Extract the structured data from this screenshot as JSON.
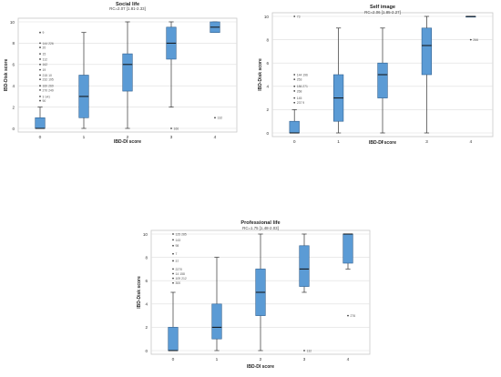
{
  "chart_data": [
    {
      "type": "box",
      "title": "Social life",
      "subtitle": "RC=2.07 [1.81-2.33]",
      "xlabel": "IBD-DI score",
      "ylabel": "IBD-Disk score",
      "categories": [
        "0",
        "1",
        "2",
        "3",
        "4"
      ],
      "yticks": [
        "0",
        "2",
        "4",
        "6",
        "8",
        "10"
      ],
      "ylim": [
        0,
        10
      ],
      "boxes": [
        {
          "category": "0",
          "min": 0,
          "q1": 0,
          "median": 0,
          "q3": 1,
          "max": 2
        },
        {
          "category": "1",
          "min": 0,
          "q1": 1,
          "median": 3,
          "q3": 5,
          "max": 9
        },
        {
          "category": "2",
          "min": 0,
          "q1": 3.5,
          "median": 6,
          "q3": 7,
          "max": 10
        },
        {
          "category": "3",
          "min": 2,
          "q1": 6.5,
          "median": 8,
          "q3": 9.5,
          "max": 10
        },
        {
          "category": "4",
          "min": 9,
          "q1": 9,
          "median": 9.5,
          "q3": 10,
          "max": 10
        }
      ],
      "outliers": [
        {
          "category": "0",
          "y": 9,
          "label": "9"
        },
        {
          "category": "0",
          "y": 8,
          "label": "144 226"
        },
        {
          "category": "0",
          "y": 7.6,
          "label": "20"
        },
        {
          "category": "0",
          "y": 7,
          "label": "15"
        },
        {
          "category": "0",
          "y": 6.5,
          "label": "112"
        },
        {
          "category": "0",
          "y": 6,
          "label": "162"
        },
        {
          "category": "0",
          "y": 5.5,
          "label": "19"
        },
        {
          "category": "0",
          "y": 5,
          "label": "215 10"
        },
        {
          "category": "0",
          "y": 4.6,
          "label": "232 195"
        },
        {
          "category": "0",
          "y": 4,
          "label": "160 269"
        },
        {
          "category": "0",
          "y": 3.6,
          "label": "270 249"
        },
        {
          "category": "0",
          "y": 3,
          "label": "3 141"
        },
        {
          "category": "0",
          "y": 2.6,
          "label": "90"
        },
        {
          "category": "3",
          "y": 0,
          "label": "166"
        },
        {
          "category": "4",
          "y": 1,
          "label": "132"
        }
      ]
    },
    {
      "type": "box",
      "title": "Self image",
      "subtitle": "RC=2.06 [1.85-2.27]",
      "xlabel": "IBD-DI score",
      "ylabel": "IBD-Disk score",
      "categories": [
        "0",
        "1",
        "2",
        "3",
        "4"
      ],
      "yticks": [
        "0",
        "2",
        "4",
        "6",
        "8",
        "10"
      ],
      "ylim": [
        0,
        10
      ],
      "boxes": [
        {
          "category": "0",
          "min": 0,
          "q1": 0,
          "median": 0,
          "q3": 1,
          "max": 2
        },
        {
          "category": "1",
          "min": 0,
          "q1": 1,
          "median": 3,
          "q3": 5,
          "max": 9
        },
        {
          "category": "2",
          "min": 0,
          "q1": 3,
          "median": 5,
          "q3": 6,
          "max": 9
        },
        {
          "category": "3",
          "min": 0,
          "q1": 5,
          "median": 7.5,
          "q3": 9,
          "max": 10
        },
        {
          "category": "4",
          "min": 10,
          "q1": 10,
          "median": 10,
          "q3": 10,
          "max": 10
        }
      ],
      "outliers": [
        {
          "category": "0",
          "y": 10,
          "label": "73"
        },
        {
          "category": "0",
          "y": 5,
          "label": "144 196"
        },
        {
          "category": "0",
          "y": 4.6,
          "label": "253"
        },
        {
          "category": "0",
          "y": 4,
          "label": "186 271"
        },
        {
          "category": "0",
          "y": 3.6,
          "label": "268"
        },
        {
          "category": "0",
          "y": 3,
          "label": "145"
        },
        {
          "category": "0",
          "y": 2.6,
          "label": "237 9"
        },
        {
          "category": "4",
          "y": 8,
          "label": "266"
        }
      ]
    },
    {
      "type": "box",
      "title": "Professional life",
      "subtitle": "RC=1.75 [1.48-2.03]",
      "xlabel": "IBD-DI score",
      "ylabel": "IBD-Disk score",
      "categories": [
        "0",
        "1",
        "2",
        "3",
        "4"
      ],
      "yticks": [
        "0",
        "2",
        "4",
        "6",
        "8",
        "10"
      ],
      "ylim": [
        0,
        10
      ],
      "boxes": [
        {
          "category": "0",
          "min": 0,
          "q1": 0,
          "median": 0,
          "q3": 2,
          "max": 5
        },
        {
          "category": "1",
          "min": 0,
          "q1": 1,
          "median": 2,
          "q3": 4,
          "max": 8
        },
        {
          "category": "2",
          "min": 0,
          "q1": 3,
          "median": 5,
          "q3": 7,
          "max": 10
        },
        {
          "category": "3",
          "min": 5,
          "q1": 5.5,
          "median": 7,
          "q3": 9,
          "max": 10
        },
        {
          "category": "4",
          "min": 7,
          "q1": 7.5,
          "median": 10,
          "q3": 10,
          "max": 10
        }
      ],
      "outliers": [
        {
          "category": "0",
          "y": 10,
          "label": "125 285"
        },
        {
          "category": "0",
          "y": 9.5,
          "label": "143"
        },
        {
          "category": "0",
          "y": 9,
          "label": "98"
        },
        {
          "category": "0",
          "y": 8.3,
          "label": "7"
        },
        {
          "category": "0",
          "y": 7.7,
          "label": "37"
        },
        {
          "category": "0",
          "y": 7,
          "label": "2270"
        },
        {
          "category": "0",
          "y": 6.6,
          "label": "14 158"
        },
        {
          "category": "0",
          "y": 6.2,
          "label": "109 212"
        },
        {
          "category": "0",
          "y": 5.8,
          "label": "300"
        },
        {
          "category": "3",
          "y": 0,
          "label": "132"
        },
        {
          "category": "4",
          "y": 3,
          "label": "276"
        }
      ]
    }
  ]
}
